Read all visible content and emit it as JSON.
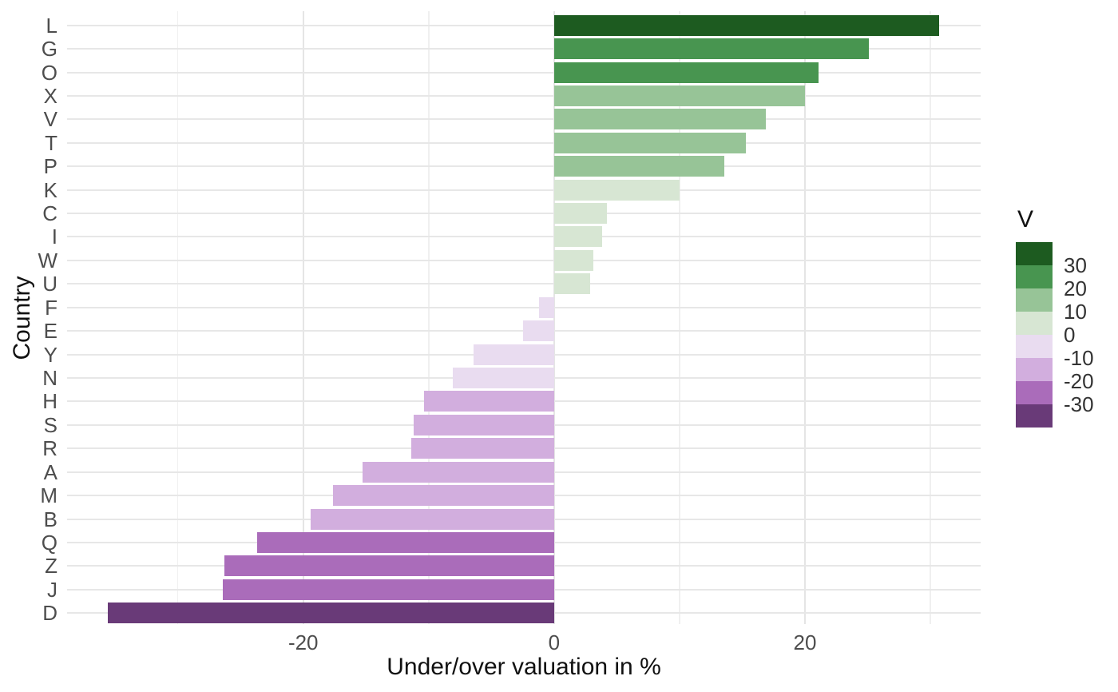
{
  "chart_data": {
    "type": "bar",
    "orientation": "horizontal",
    "xlabel": "Under/over valuation in %",
    "ylabel": "Country",
    "categories": [
      "L",
      "G",
      "O",
      "X",
      "V",
      "T",
      "P",
      "K",
      "C",
      "I",
      "W",
      "U",
      "F",
      "E",
      "Y",
      "N",
      "H",
      "S",
      "R",
      "A",
      "M",
      "B",
      "Q",
      "Z",
      "J",
      "D"
    ],
    "values": [
      30.7,
      25.1,
      21.1,
      20.0,
      16.9,
      15.3,
      13.6,
      10.0,
      4.2,
      3.8,
      3.1,
      2.9,
      -1.2,
      -2.5,
      -6.4,
      -8.1,
      -10.4,
      -11.2,
      -11.4,
      -15.3,
      -17.6,
      -19.4,
      -23.7,
      -26.3,
      -26.4,
      -35.6
    ],
    "xlim": [
      -38.83,
      34.01
    ],
    "x_ticks_major": [
      -20,
      0,
      20
    ],
    "x_ticks_minor": [
      -30,
      -10,
      10,
      30
    ],
    "grid": true,
    "legend": {
      "title": "V",
      "position": "right",
      "breaks": [
        -30,
        -20,
        -10,
        0,
        10,
        20,
        30
      ],
      "labels_top_to_bottom": [
        "30",
        "20",
        "10",
        "0",
        "-10",
        "-20",
        "-30"
      ]
    },
    "palette_neg_to_pos": [
      "#693a78",
      "#aa6cba",
      "#d2aede",
      "#e9dcf0",
      "#d7e6d3",
      "#97c497",
      "#489550",
      "#1d5b20"
    ],
    "colors": {
      "grid_major": "#e5e5e5",
      "grid_minor": "#f0f0f0",
      "tick_label": "#4d4d4d",
      "axis_title": "#111111",
      "background": "#ffffff"
    }
  }
}
